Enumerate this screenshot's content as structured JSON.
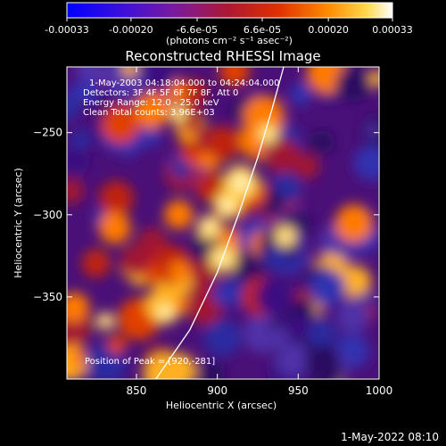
{
  "chart_data": {
    "type": "heatmap",
    "title": "Reconstructed RHESSI Image",
    "colorbar": {
      "ticks": [
        "-0.00033",
        "-0.00020",
        "-6.6e-05",
        "6.6e-05",
        "0.00020",
        "0.00033"
      ],
      "tick_values": [
        -0.00033,
        -0.0002,
        -6.6e-05,
        6.6e-05,
        0.0002,
        0.00033
      ],
      "range": [
        -0.00033,
        0.00033
      ],
      "unit_label": "(photons cm⁻² s⁻¹ asec⁻²)",
      "colors": [
        "#0000ff",
        "#5a00c8",
        "#9a2080",
        "#d02010",
        "#ff7000",
        "#ffd040",
        "#ffffff"
      ]
    },
    "xlabel": "Heliocentric X (arcsec)",
    "ylabel": "Heliocentric Y (arcsec)",
    "xlim": [
      807,
      1000
    ],
    "ylim": [
      -400,
      -210
    ],
    "xticks": [
      850,
      900,
      950,
      1000
    ],
    "yticks": [
      -250,
      -300,
      -350
    ],
    "annotations": [
      "1-May-2003 04:18:04.000 to 04:24:04.000",
      "Detectors: 3F 4F 5F 6F 7F 8F, Att 0",
      "Energy Range: 12.0 - 25.0 keV",
      "Clean     Total counts: 3.96E+03"
    ],
    "peak_label": "Position of Peak = [920,-281]",
    "peak": [
      920,
      -281
    ],
    "limb_curve": [
      [
        862,
        -400
      ],
      [
        883,
        -370
      ],
      [
        900,
        -335
      ],
      [
        913,
        -300
      ],
      [
        925,
        -265
      ],
      [
        934,
        -235
      ],
      [
        941,
        -210
      ]
    ]
  },
  "footer_timestamp": "1-May-2022 08:10"
}
